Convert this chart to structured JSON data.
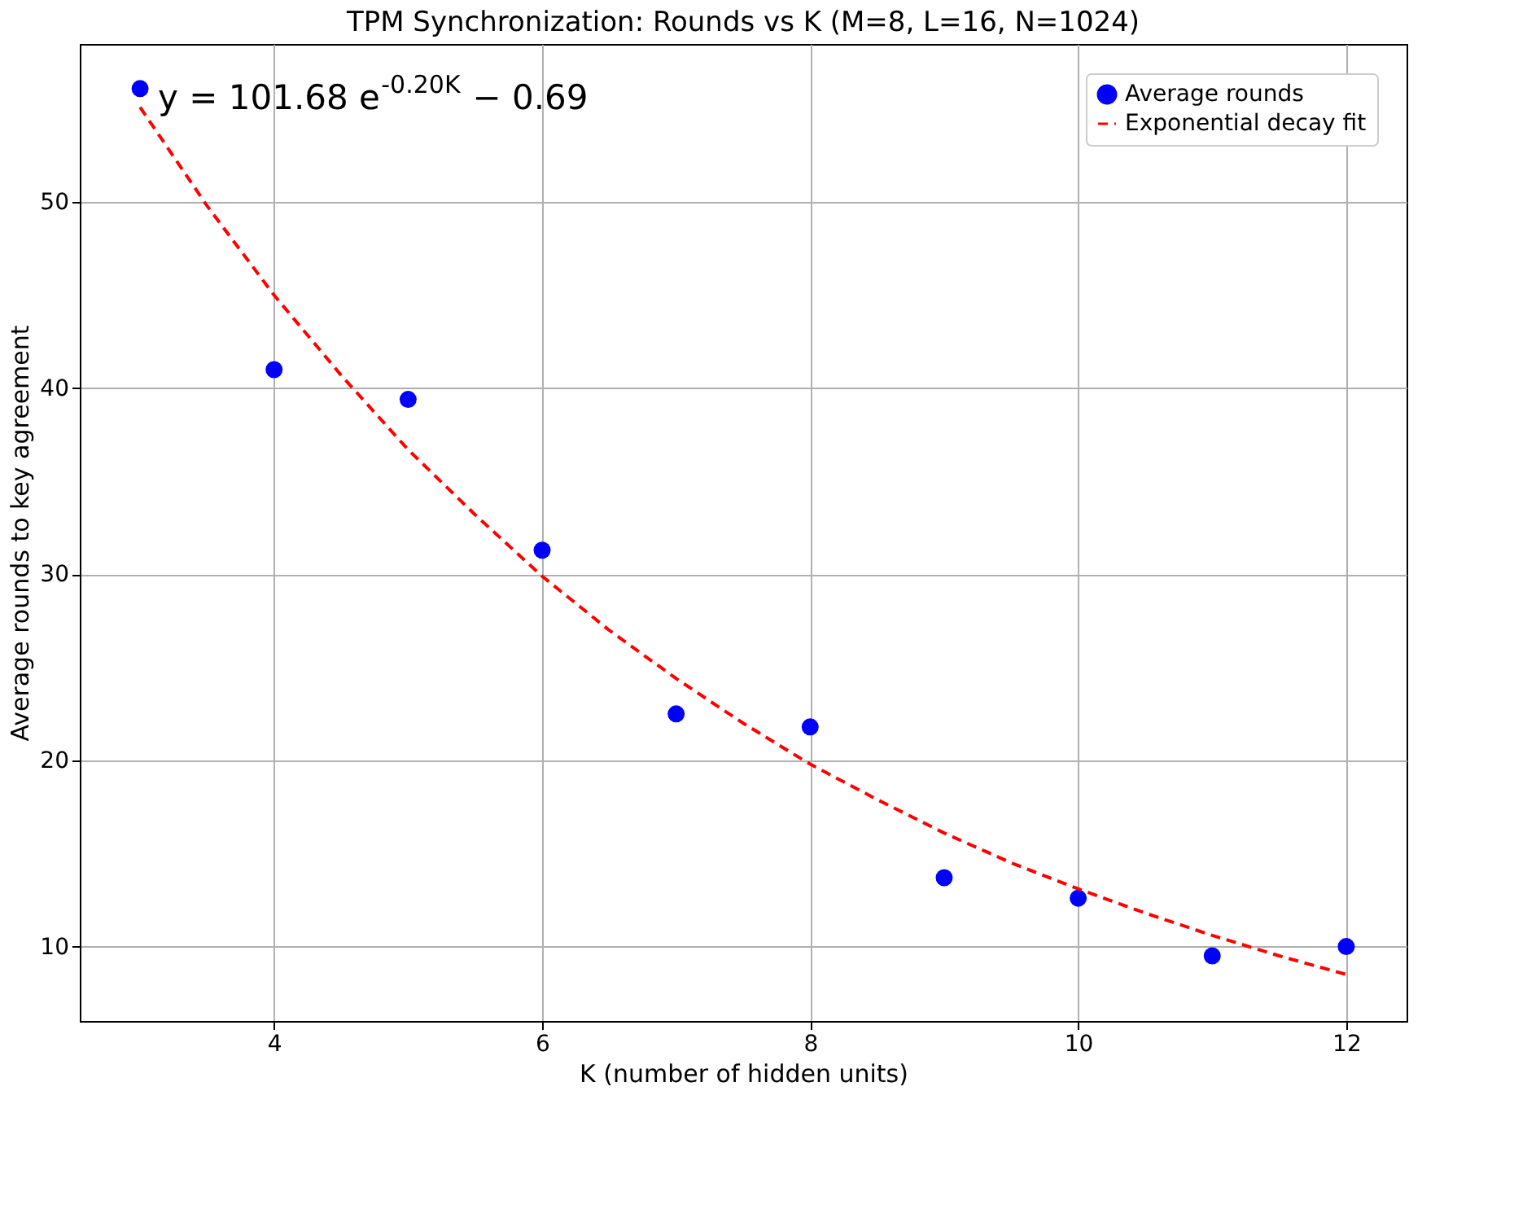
{
  "chart_data": {
    "type": "scatter",
    "title": "TPM Synchronization: Rounds vs K (M=8, L=16, N=1024)",
    "xlabel": "K (number of hidden units)",
    "ylabel": "Average rounds to key agreement",
    "x": [
      3,
      4,
      5,
      6,
      7,
      8,
      9,
      10,
      11,
      12
    ],
    "series": [
      {
        "name": "Average rounds",
        "color": "#0000ff",
        "marker": "circle",
        "values": [
          56.1,
          41.0,
          39.4,
          31.3,
          22.5,
          21.8,
          13.7,
          12.6,
          9.5,
          10.0
        ]
      },
      {
        "name": "Exponential decay fit",
        "type": "line",
        "color": "#ff0000",
        "line_style": "dashed",
        "marker": "none",
        "x": [
          3,
          3.5,
          4,
          4.5,
          5,
          5.5,
          6,
          6.5,
          7,
          7.5,
          8,
          8.5,
          9,
          9.5,
          10,
          10.5,
          11,
          11.5,
          12
        ],
        "values": [
          55.1,
          49.8,
          45.0,
          40.7,
          36.7,
          33.2,
          29.9,
          27.0,
          24.4,
          22.0,
          19.8,
          17.9,
          16.1,
          14.5,
          13.1,
          11.8,
          10.6,
          9.5,
          8.5
        ]
      }
    ],
    "annotations": [
      "y = 101.68 e$^{-0.20K}$ − 0.69"
    ],
    "xlim": [
      2.55,
      12.45
    ],
    "xticks": [
      4,
      6,
      8,
      10,
      12
    ],
    "ylim": [
      6.0,
      58.5
    ],
    "yticks": [
      10,
      20,
      30,
      40,
      50
    ],
    "grid": true,
    "legend": "top right"
  }
}
